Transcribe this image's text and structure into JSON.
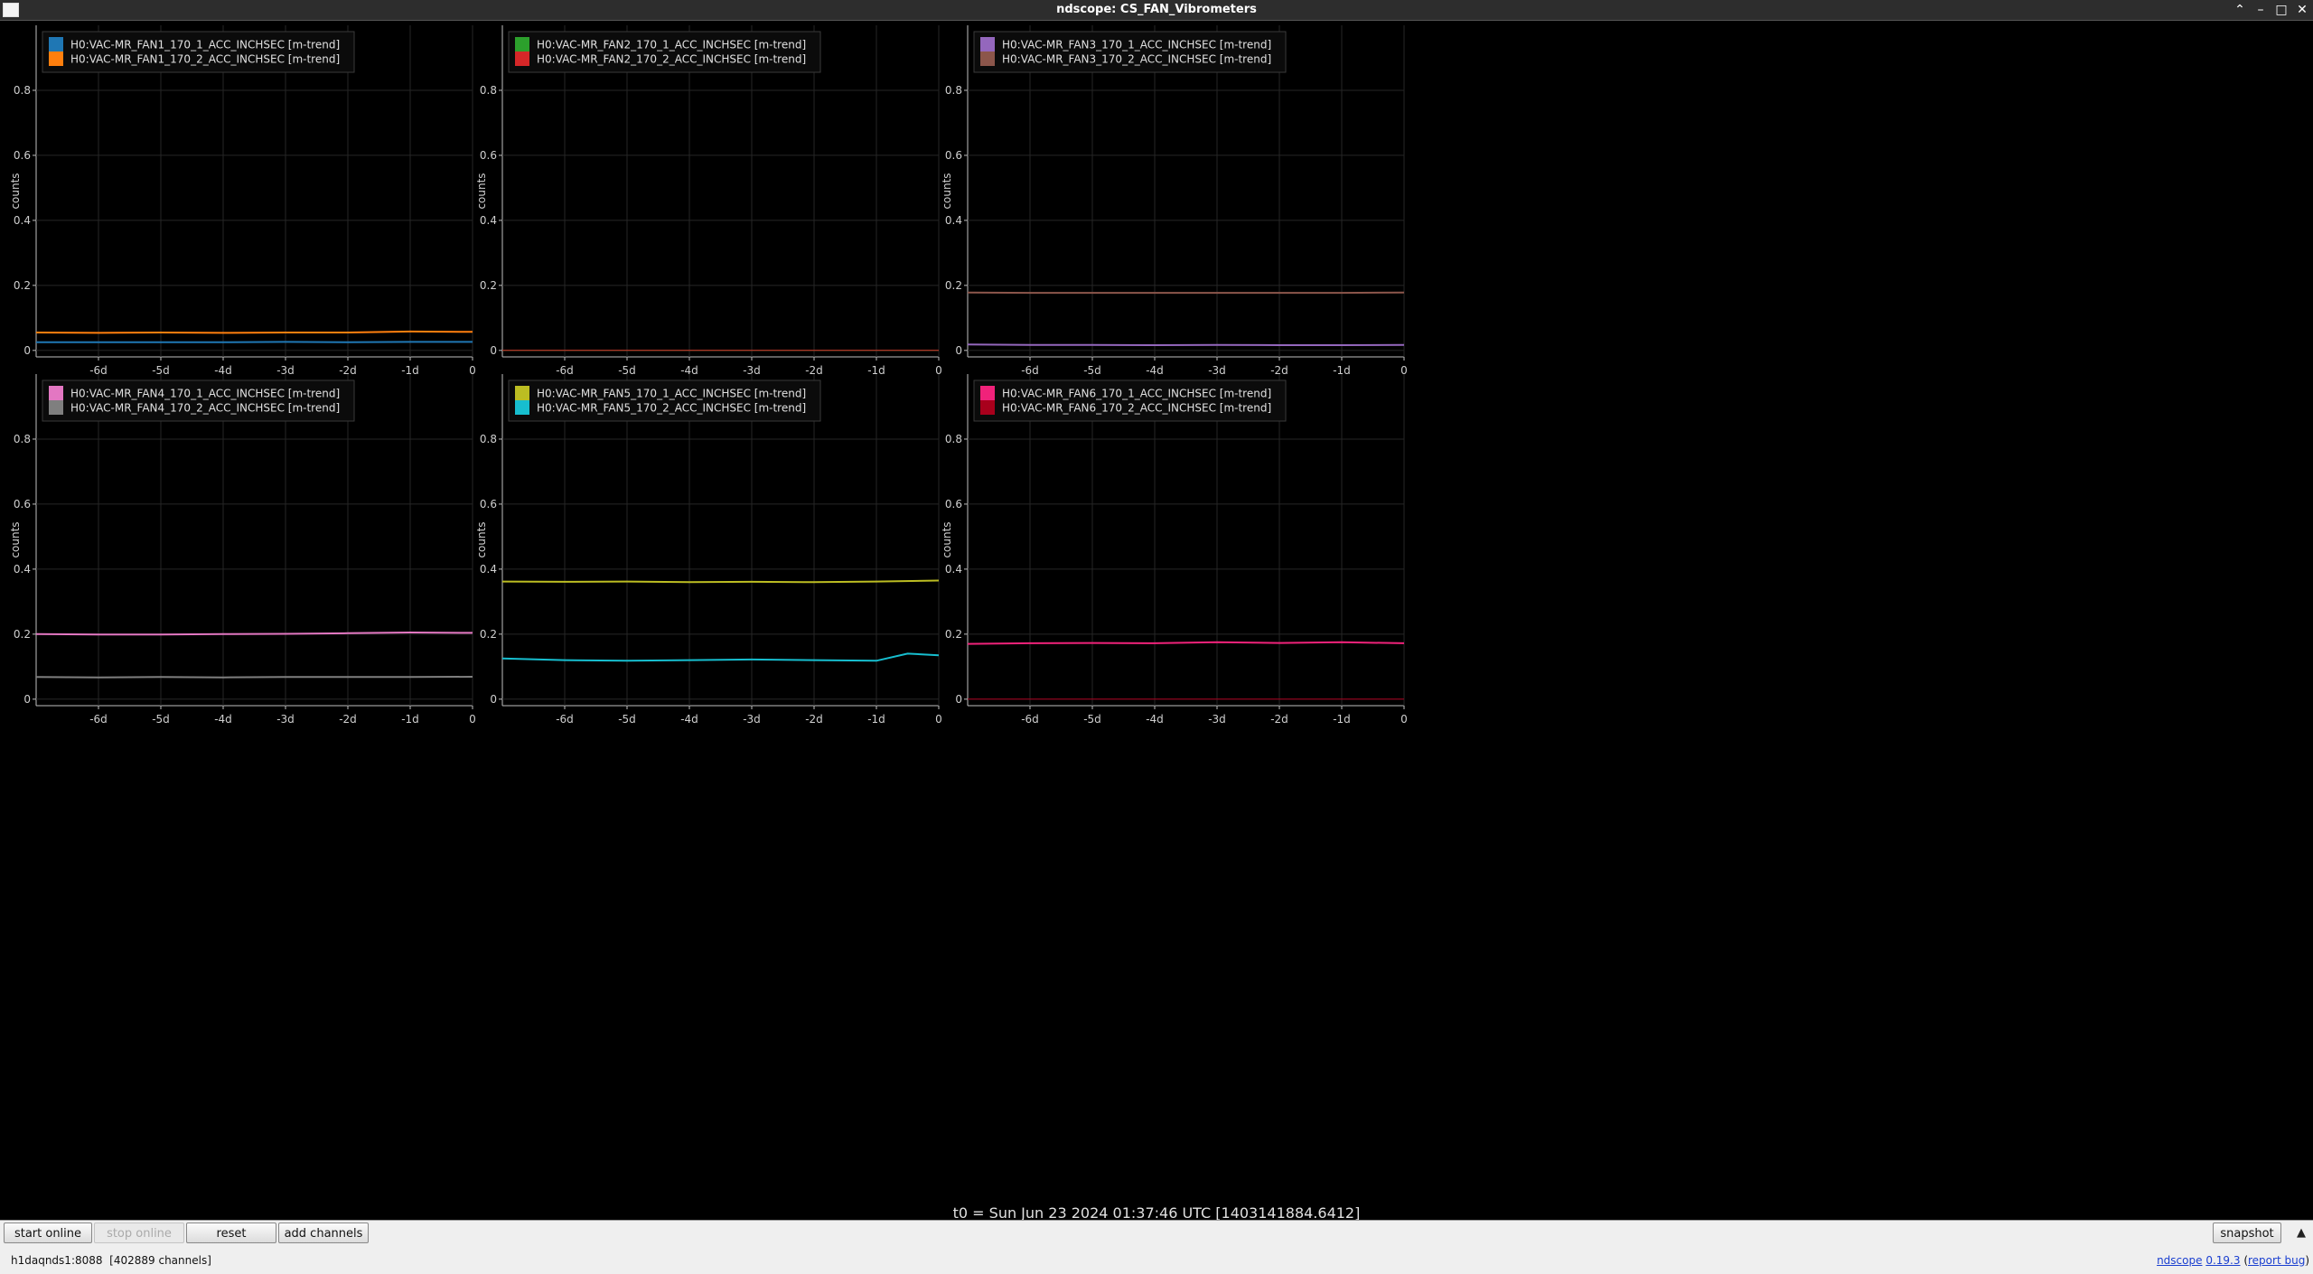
{
  "window": {
    "title": "ndscope: CS_FAN_Vibrometers"
  },
  "window_controls": {
    "collapse": "⌃",
    "minimize": "–",
    "maximize": "□",
    "close": "✕"
  },
  "time_label": "t0 = Sun Jun 23 2024 01:37:46 UTC [1403141884.6412]",
  "chart_data": [
    {
      "type": "line",
      "ylabel": "counts",
      "x_tick_labels": [
        "-6d",
        "-5d",
        "-4d",
        "-3d",
        "-2d",
        "-1d",
        "0"
      ],
      "y_tick_labels": [
        "0",
        "0.2",
        "0.4",
        "0.6",
        "0.8"
      ],
      "xlim": [
        -7,
        0
      ],
      "ylim": [
        -0.02,
        1.0
      ],
      "grid": true,
      "legend": "top-left",
      "series": [
        {
          "name": "H0:VAC-MR_FAN1_170_1_ACC_INCHSEC [m-trend]",
          "color": "#1f77b4",
          "x": [
            -7,
            -6,
            -5,
            -4,
            -3,
            -2,
            -1,
            0
          ],
          "values": [
            0.025,
            0.025,
            0.025,
            0.025,
            0.026,
            0.025,
            0.026,
            0.026
          ]
        },
        {
          "name": "H0:VAC-MR_FAN1_170_2_ACC_INCHSEC [m-trend]",
          "color": "#ff7f0e",
          "x": [
            -7,
            -6,
            -5,
            -4,
            -3,
            -2,
            -1,
            0
          ],
          "values": [
            0.055,
            0.054,
            0.055,
            0.054,
            0.055,
            0.055,
            0.058,
            0.057
          ]
        }
      ]
    },
    {
      "type": "line",
      "ylabel": "counts",
      "x_tick_labels": [
        "-6d",
        "-5d",
        "-4d",
        "-3d",
        "-2d",
        "-1d",
        "0"
      ],
      "y_tick_labels": [
        "0",
        "0.2",
        "0.4",
        "0.6",
        "0.8"
      ],
      "xlim": [
        -7,
        0
      ],
      "ylim": [
        -0.02,
        1.0
      ],
      "grid": true,
      "legend": "top-left",
      "series": [
        {
          "name": "H0:VAC-MR_FAN2_170_1_ACC_INCHSEC [m-trend]",
          "color": "#2ca02c",
          "x": [
            -7,
            0
          ],
          "values": [
            0.0,
            0.0
          ]
        },
        {
          "name": "H0:VAC-MR_FAN2_170_2_ACC_INCHSEC [m-trend]",
          "color": "#d62728",
          "x": [
            -7,
            0
          ],
          "values": [
            0.0,
            0.0
          ]
        }
      ]
    },
    {
      "type": "line",
      "ylabel": "counts",
      "x_tick_labels": [
        "-6d",
        "-5d",
        "-4d",
        "-3d",
        "-2d",
        "-1d",
        "0"
      ],
      "y_tick_labels": [
        "0",
        "0.2",
        "0.4",
        "0.6",
        "0.8"
      ],
      "xlim": [
        -7,
        0
      ],
      "ylim": [
        -0.02,
        1.0
      ],
      "grid": true,
      "legend": "top-left",
      "series": [
        {
          "name": "H0:VAC-MR_FAN3_170_1_ACC_INCHSEC [m-trend]",
          "color": "#9467bd",
          "x": [
            -7,
            -6,
            -5,
            -4,
            -3,
            -2,
            -1,
            0
          ],
          "values": [
            0.018,
            0.017,
            0.017,
            0.016,
            0.017,
            0.016,
            0.016,
            0.017
          ]
        },
        {
          "name": "H0:VAC-MR_FAN3_170_2_ACC_INCHSEC [m-trend]",
          "color": "#8c564b",
          "x": [
            -7,
            -6,
            -5,
            -4,
            -3,
            -2,
            -1,
            0
          ],
          "values": [
            0.178,
            0.177,
            0.177,
            0.177,
            0.177,
            0.177,
            0.177,
            0.178
          ]
        }
      ]
    },
    {
      "type": "line",
      "ylabel": "counts",
      "x_tick_labels": [
        "-6d",
        "-5d",
        "-4d",
        "-3d",
        "-2d",
        "-1d",
        "0"
      ],
      "y_tick_labels": [
        "0",
        "0.2",
        "0.4",
        "0.6",
        "0.8"
      ],
      "xlim": [
        -7,
        0
      ],
      "ylim": [
        -0.02,
        1.0
      ],
      "grid": true,
      "legend": "top-left",
      "series": [
        {
          "name": "H0:VAC-MR_FAN4_170_1_ACC_INCHSEC [m-trend]",
          "color": "#e377c2",
          "x": [
            -7,
            -6,
            -5,
            -4,
            -3,
            -2,
            -1,
            0
          ],
          "values": [
            0.2,
            0.199,
            0.199,
            0.2,
            0.201,
            0.203,
            0.205,
            0.204
          ]
        },
        {
          "name": "H0:VAC-MR_FAN4_170_2_ACC_INCHSEC [m-trend]",
          "color": "#7f7f7f",
          "x": [
            -7,
            -6,
            -5,
            -4,
            -3,
            -2,
            -1,
            0
          ],
          "values": [
            0.068,
            0.067,
            0.068,
            0.067,
            0.068,
            0.068,
            0.068,
            0.069
          ]
        }
      ]
    },
    {
      "type": "line",
      "ylabel": "counts",
      "x_tick_labels": [
        "-6d",
        "-5d",
        "-4d",
        "-3d",
        "-2d",
        "-1d",
        "0"
      ],
      "y_tick_labels": [
        "0",
        "0.2",
        "0.4",
        "0.6",
        "0.8"
      ],
      "xlim": [
        -7,
        0
      ],
      "ylim": [
        -0.02,
        1.0
      ],
      "grid": true,
      "legend": "top-left",
      "series": [
        {
          "name": "H0:VAC-MR_FAN5_170_1_ACC_INCHSEC [m-trend]",
          "color": "#bcbd22",
          "x": [
            -7,
            -6,
            -5,
            -4,
            -3,
            -2,
            -1,
            0
          ],
          "values": [
            0.362,
            0.361,
            0.362,
            0.36,
            0.361,
            0.36,
            0.362,
            0.365
          ]
        },
        {
          "name": "H0:VAC-MR_FAN5_170_2_ACC_INCHSEC [m-trend]",
          "color": "#17becf",
          "x": [
            -7,
            -6,
            -5,
            -4,
            -3,
            -2,
            -1,
            -0.5,
            0
          ],
          "values": [
            0.125,
            0.12,
            0.118,
            0.12,
            0.122,
            0.12,
            0.118,
            0.14,
            0.135
          ]
        }
      ]
    },
    {
      "type": "line",
      "ylabel": "counts",
      "x_tick_labels": [
        "-6d",
        "-5d",
        "-4d",
        "-3d",
        "-2d",
        "-1d",
        "0"
      ],
      "y_tick_labels": [
        "0",
        "0.2",
        "0.4",
        "0.6",
        "0.8"
      ],
      "xlim": [
        -7,
        0
      ],
      "ylim": [
        -0.02,
        1.0
      ],
      "grid": true,
      "legend": "top-left",
      "series": [
        {
          "name": "H0:VAC-MR_FAN6_170_1_ACC_INCHSEC [m-trend]",
          "color": "#f0227a",
          "x": [
            -7,
            -6,
            -5,
            -4,
            -3,
            -2,
            -1,
            0
          ],
          "values": [
            0.17,
            0.172,
            0.173,
            0.172,
            0.175,
            0.173,
            0.175,
            0.172
          ]
        },
        {
          "name": "H0:VAC-MR_FAN6_170_2_ACC_INCHSEC [m-trend]",
          "color": "#a8001c",
          "x": [
            -7,
            0
          ],
          "values": [
            0.0,
            0.0
          ]
        }
      ]
    }
  ],
  "toolbar": {
    "start_online": "start online",
    "stop_online": "stop online",
    "reset": "reset",
    "add_channels": "add channels",
    "snapshot": "snapshot",
    "collapse_arrow": "▲"
  },
  "status": {
    "server": "h1daqnds1:8088",
    "channels": "[402889 channels]",
    "app_name": "ndscope",
    "version": "0.19.3",
    "report_bug": "report bug"
  }
}
